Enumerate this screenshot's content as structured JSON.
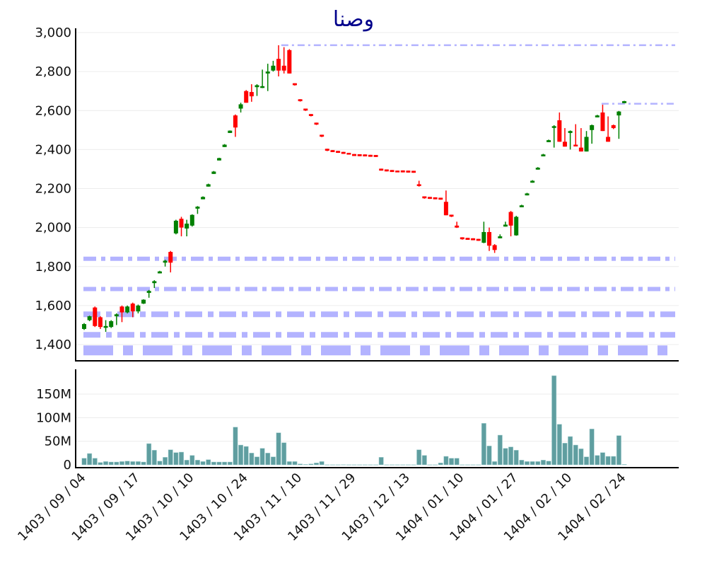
{
  "chart_data": [
    {
      "type": "candlestick",
      "title": "وصنا",
      "xlabel": "",
      "ylabel": "",
      "ylim": [
        1316,
        3022
      ],
      "yticks": [
        1400,
        1600,
        1800,
        2000,
        2200,
        2400,
        2600,
        2800,
        3000
      ],
      "ytick_labels": [
        "1,400",
        "1,600",
        "1,800",
        "2,000",
        "2,200",
        "2,400",
        "2,600",
        "2,800",
        "3,000"
      ],
      "xtick_labels": [
        "1403 / 09 / 04",
        "1403 / 09 / 17",
        "1403 / 10 / 10",
        "1403 / 10 / 24",
        "1403 / 11 / 10",
        "1403 / 11 / 29",
        "1403 / 12 / 13",
        "1404 / 01 / 10",
        "1404 / 01 / 27",
        "1404 / 02 / 10",
        "1404 / 02 / 24"
      ],
      "xtick_every": 10,
      "grid": true,
      "colors": {
        "up": "#008000",
        "down": "#ff0000",
        "level_line": "#b3b3ff",
        "grid": "#ececec"
      },
      "ohlc_fields": [
        "open",
        "high",
        "low",
        "close"
      ],
      "ohlc": [
        [
          1480,
          1510,
          1475,
          1505
        ],
        [
          1525,
          1548,
          1520,
          1545
        ],
        [
          1590,
          1595,
          1490,
          1495
        ],
        [
          1540,
          1545,
          1480,
          1490
        ],
        [
          1490,
          1525,
          1465,
          1495
        ],
        [
          1490,
          1525,
          1485,
          1520
        ],
        [
          1545,
          1560,
          1500,
          1555
        ],
        [
          1595,
          1600,
          1515,
          1565
        ],
        [
          1565,
          1600,
          1560,
          1595
        ],
        [
          1610,
          1615,
          1540,
          1570
        ],
        [
          1570,
          1605,
          1560,
          1600
        ],
        [
          1610,
          1632,
          1608,
          1630
        ],
        [
          1665,
          1680,
          1640,
          1675
        ],
        [
          1715,
          1730,
          1690,
          1725
        ],
        [
          1765,
          1778,
          1765,
          1775
        ],
        [
          1820,
          1835,
          1800,
          1830
        ],
        [
          1875,
          1880,
          1770,
          1820
        ],
        [
          1970,
          2040,
          1965,
          2035
        ],
        [
          2045,
          2055,
          1955,
          2000
        ],
        [
          1995,
          2040,
          1955,
          2020
        ],
        [
          2010,
          2068,
          2005,
          2065
        ],
        [
          2097,
          2110,
          2070,
          2107
        ],
        [
          2145,
          2160,
          2145,
          2157
        ],
        [
          2210,
          2225,
          2210,
          2222
        ],
        [
          2275,
          2290,
          2275,
          2287
        ],
        [
          2344,
          2358,
          2344,
          2356
        ],
        [
          2413,
          2428,
          2413,
          2425
        ],
        [
          2485,
          2498,
          2485,
          2497
        ],
        [
          2575,
          2580,
          2465,
          2513
        ],
        [
          2610,
          2640,
          2590,
          2632
        ],
        [
          2700,
          2705,
          2640,
          2640
        ],
        [
          2695,
          2735,
          2645,
          2673
        ],
        [
          2720,
          2735,
          2675,
          2730
        ],
        [
          2720,
          2810,
          2715,
          2725
        ],
        [
          2790,
          2840,
          2700,
          2800
        ],
        [
          2805,
          2855,
          2800,
          2830
        ],
        [
          2865,
          2935,
          2775,
          2805
        ],
        [
          2830,
          2925,
          2790,
          2805
        ],
        [
          2910,
          2915,
          2790,
          2790
        ],
        [
          2740,
          2740,
          2728,
          2730
        ],
        [
          2658,
          2658,
          2646,
          2648
        ],
        [
          2610,
          2610,
          2598,
          2600
        ],
        [
          2582,
          2582,
          2570,
          2572
        ],
        [
          2538,
          2538,
          2526,
          2528
        ],
        [
          2476,
          2476,
          2464,
          2466
        ],
        [
          2404,
          2404,
          2392,
          2394
        ],
        [
          2397,
          2397,
          2387,
          2387
        ],
        [
          2393,
          2393,
          2383,
          2383
        ],
        [
          2388,
          2388,
          2378,
          2378
        ],
        [
          2383,
          2383,
          2375,
          2375
        ],
        [
          2377,
          2377,
          2367,
          2367
        ],
        [
          2376,
          2376,
          2366,
          2366
        ],
        [
          2375,
          2375,
          2365,
          2365
        ],
        [
          2373,
          2373,
          2363,
          2363
        ],
        [
          2372,
          2372,
          2362,
          2362
        ],
        [
          2302,
          2302,
          2292,
          2292
        ],
        [
          2298,
          2298,
          2288,
          2288
        ],
        [
          2295,
          2295,
          2285,
          2285
        ],
        [
          2292,
          2292,
          2284,
          2284
        ],
        [
          2293,
          2293,
          2283,
          2283
        ],
        [
          2292,
          2292,
          2282,
          2282
        ],
        [
          2291,
          2291,
          2281,
          2281
        ],
        [
          2222,
          2240,
          2210,
          2213
        ],
        [
          2160,
          2160,
          2148,
          2150
        ],
        [
          2157,
          2157,
          2147,
          2147
        ],
        [
          2155,
          2155,
          2145,
          2145
        ],
        [
          2153,
          2153,
          2143,
          2143
        ],
        [
          2132,
          2190,
          2063,
          2063
        ],
        [
          2066,
          2066,
          2054,
          2056
        ],
        [
          2010,
          2030,
          1998,
          2000
        ],
        [
          1950,
          1950,
          1938,
          1940
        ],
        [
          1947,
          1947,
          1937,
          1937
        ],
        [
          1945,
          1945,
          1935,
          1935
        ],
        [
          1942,
          1942,
          1932,
          1932
        ],
        [
          1922,
          2030,
          1920,
          1977
        ],
        [
          1977,
          2000,
          1880,
          1907
        ],
        [
          1910,
          1915,
          1870,
          1885
        ],
        [
          1945,
          1965,
          1945,
          1955
        ],
        [
          2005,
          2030,
          2005,
          2015
        ],
        [
          2080,
          2085,
          1955,
          2010
        ],
        [
          1960,
          2060,
          1958,
          2055
        ],
        [
          2104,
          2117,
          2104,
          2114
        ],
        [
          2165,
          2178,
          2165,
          2175
        ],
        [
          2230,
          2243,
          2230,
          2240
        ],
        [
          2297,
          2310,
          2297,
          2307
        ],
        [
          2365,
          2378,
          2365,
          2375
        ],
        [
          2438,
          2451,
          2438,
          2448
        ],
        [
          2515,
          2525,
          2410,
          2520
        ],
        [
          2550,
          2590,
          2440,
          2440
        ],
        [
          2440,
          2510,
          2415,
          2415
        ],
        [
          2485,
          2498,
          2400,
          2495
        ],
        [
          2425,
          2530,
          2420,
          2420
        ],
        [
          2410,
          2510,
          2390,
          2390
        ],
        [
          2390,
          2495,
          2390,
          2465
        ],
        [
          2500,
          2528,
          2430,
          2525
        ],
        [
          2565,
          2578,
          2565,
          2575
        ],
        [
          2590,
          2630,
          2495,
          2495
        ],
        [
          2465,
          2570,
          2440,
          2440
        ],
        [
          2525,
          2528,
          2505,
          2510
        ],
        [
          2575,
          2598,
          2455,
          2595
        ],
        [
          2638,
          2650,
          2638,
          2648
        ]
      ],
      "level_lines": [
        {
          "price": 2935,
          "from_index": 36.5,
          "style": "dashdot-thin"
        },
        {
          "price": 2635,
          "from_index": 95.8,
          "style": "dashdot-thin"
        },
        {
          "price": 1840,
          "from_index": 0,
          "style": "dashdot-medium"
        },
        {
          "price": 1685,
          "from_index": 0,
          "style": "dashdot-medium"
        },
        {
          "price": 1555,
          "from_index": 0,
          "style": "dashdot-wide"
        },
        {
          "price": 1450,
          "from_index": 0,
          "style": "dashdot-wide"
        },
        {
          "price": 1370,
          "from_index": 0,
          "style": "dashdot-heavy"
        }
      ]
    },
    {
      "type": "bar",
      "ylabel": "",
      "ylim": [
        -6,
        202
      ],
      "yticks": [
        0,
        50,
        100,
        150
      ],
      "ytick_labels": [
        "0",
        "50M",
        "100M",
        "150M"
      ],
      "unit": "M",
      "color": "#5f9ea0",
      "values": [
        14,
        24,
        14,
        5,
        7,
        6,
        6,
        7,
        8,
        7,
        7,
        6,
        45,
        31,
        8,
        16,
        32,
        26,
        27,
        10,
        20,
        10,
        7,
        11,
        6,
        6,
        6,
        6,
        80,
        42,
        39,
        25,
        17,
        35,
        25,
        17,
        68,
        47,
        7,
        7,
        2,
        1,
        2,
        4,
        7,
        0.3,
        0.3,
        0.3,
        0.5,
        0.3,
        0.3,
        0.3,
        0.3,
        0.3,
        0.3,
        16,
        0.3,
        0.3,
        0.3,
        0.3,
        0.3,
        0.3,
        32,
        20,
        0.3,
        0.3,
        4,
        18,
        14,
        14,
        0.3,
        0.3,
        0.3,
        0.3,
        88,
        40,
        7,
        63,
        35,
        38,
        31,
        10,
        7,
        7,
        7,
        10,
        8,
        189,
        86,
        46,
        60,
        42,
        34,
        17,
        76,
        20,
        26,
        18,
        18,
        62,
        1
      ]
    }
  ]
}
